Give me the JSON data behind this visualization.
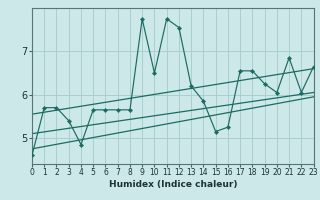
{
  "xlabel": "Humidex (Indice chaleur)",
  "ylabel": "",
  "bg_color": "#cce8e8",
  "line_color": "#1a6b62",
  "grid_color": "#aacece",
  "x_data": [
    0,
    1,
    2,
    3,
    4,
    5,
    6,
    7,
    8,
    9,
    10,
    11,
    12,
    13,
    14,
    15,
    16,
    17,
    18,
    19,
    20,
    21,
    22,
    23
  ],
  "y_scatter": [
    4.6,
    5.7,
    5.7,
    5.4,
    4.85,
    5.65,
    5.65,
    5.65,
    5.65,
    7.75,
    6.5,
    7.75,
    7.55,
    6.2,
    5.85,
    5.15,
    5.25,
    6.55,
    6.55,
    6.25,
    6.05,
    6.85,
    6.05,
    6.65
  ],
  "reg_line1": [
    [
      0,
      5.1
    ],
    [
      23,
      6.05
    ]
  ],
  "reg_line2": [
    [
      0,
      4.75
    ],
    [
      23,
      5.95
    ]
  ],
  "reg_line3": [
    [
      0,
      5.55
    ],
    [
      23,
      6.6
    ]
  ],
  "ylim": [
    4.4,
    8.0
  ],
  "xlim": [
    0,
    23
  ],
  "yticks": [
    5,
    6,
    7
  ],
  "xticks": [
    0,
    1,
    2,
    3,
    4,
    5,
    6,
    7,
    8,
    9,
    10,
    11,
    12,
    13,
    14,
    15,
    16,
    17,
    18,
    19,
    20,
    21,
    22,
    23
  ],
  "tick_fontsize": 5.5,
  "xlabel_fontsize": 6.5
}
